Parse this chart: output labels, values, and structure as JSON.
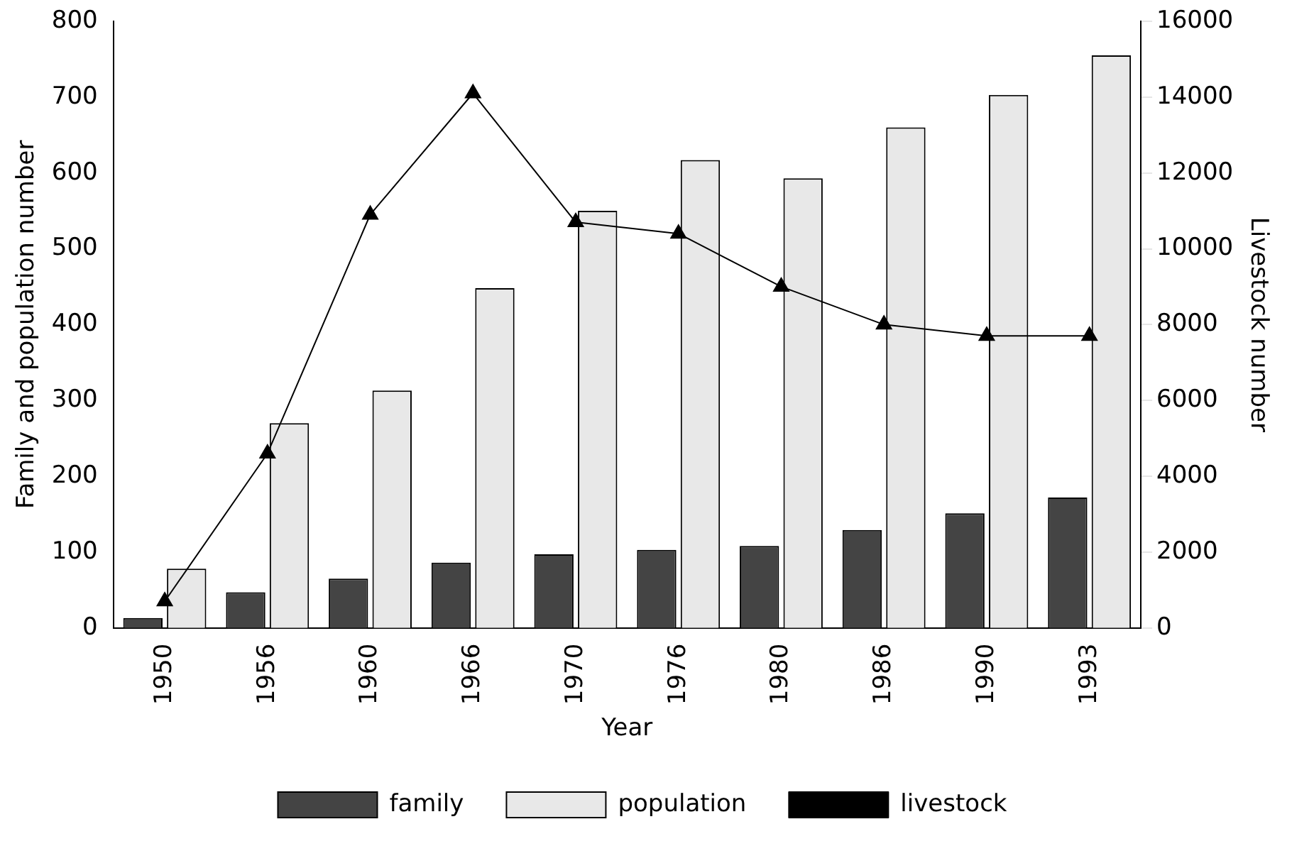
{
  "chart_data": {
    "type": "bar",
    "xlabel": "Year",
    "ylabel": "Family and population number",
    "y2label": "Livestock number",
    "categories": [
      "1950",
      "1956",
      "1960",
      "1966",
      "1970",
      "1976",
      "1980",
      "1986",
      "1990",
      "1993"
    ],
    "series": [
      {
        "name": "family",
        "color": "#444444",
        "values": [
          13,
          47,
          65,
          86,
          97,
          103,
          108,
          129,
          151,
          172
        ]
      },
      {
        "name": "population",
        "color": "#e8e8e8",
        "values": [
          78,
          270,
          313,
          448,
          550,
          617,
          593,
          660,
          703,
          755
        ]
      },
      {
        "name": "livestock",
        "type": "line",
        "axis": "y2",
        "color": "#000000",
        "values": [
          700,
          4600,
          10900,
          14100,
          10700,
          10400,
          9000,
          8000,
          7700,
          7700
        ]
      }
    ],
    "ylim": [
      0,
      800
    ],
    "yticks": [
      0,
      100,
      200,
      300,
      400,
      500,
      600,
      700,
      800
    ],
    "y2lim": [
      0,
      16000
    ],
    "y2ticks": [
      0,
      2000,
      4000,
      6000,
      8000,
      10000,
      12000,
      14000,
      16000
    ],
    "marker": "triangle",
    "legend": "bottom",
    "grid": false
  }
}
